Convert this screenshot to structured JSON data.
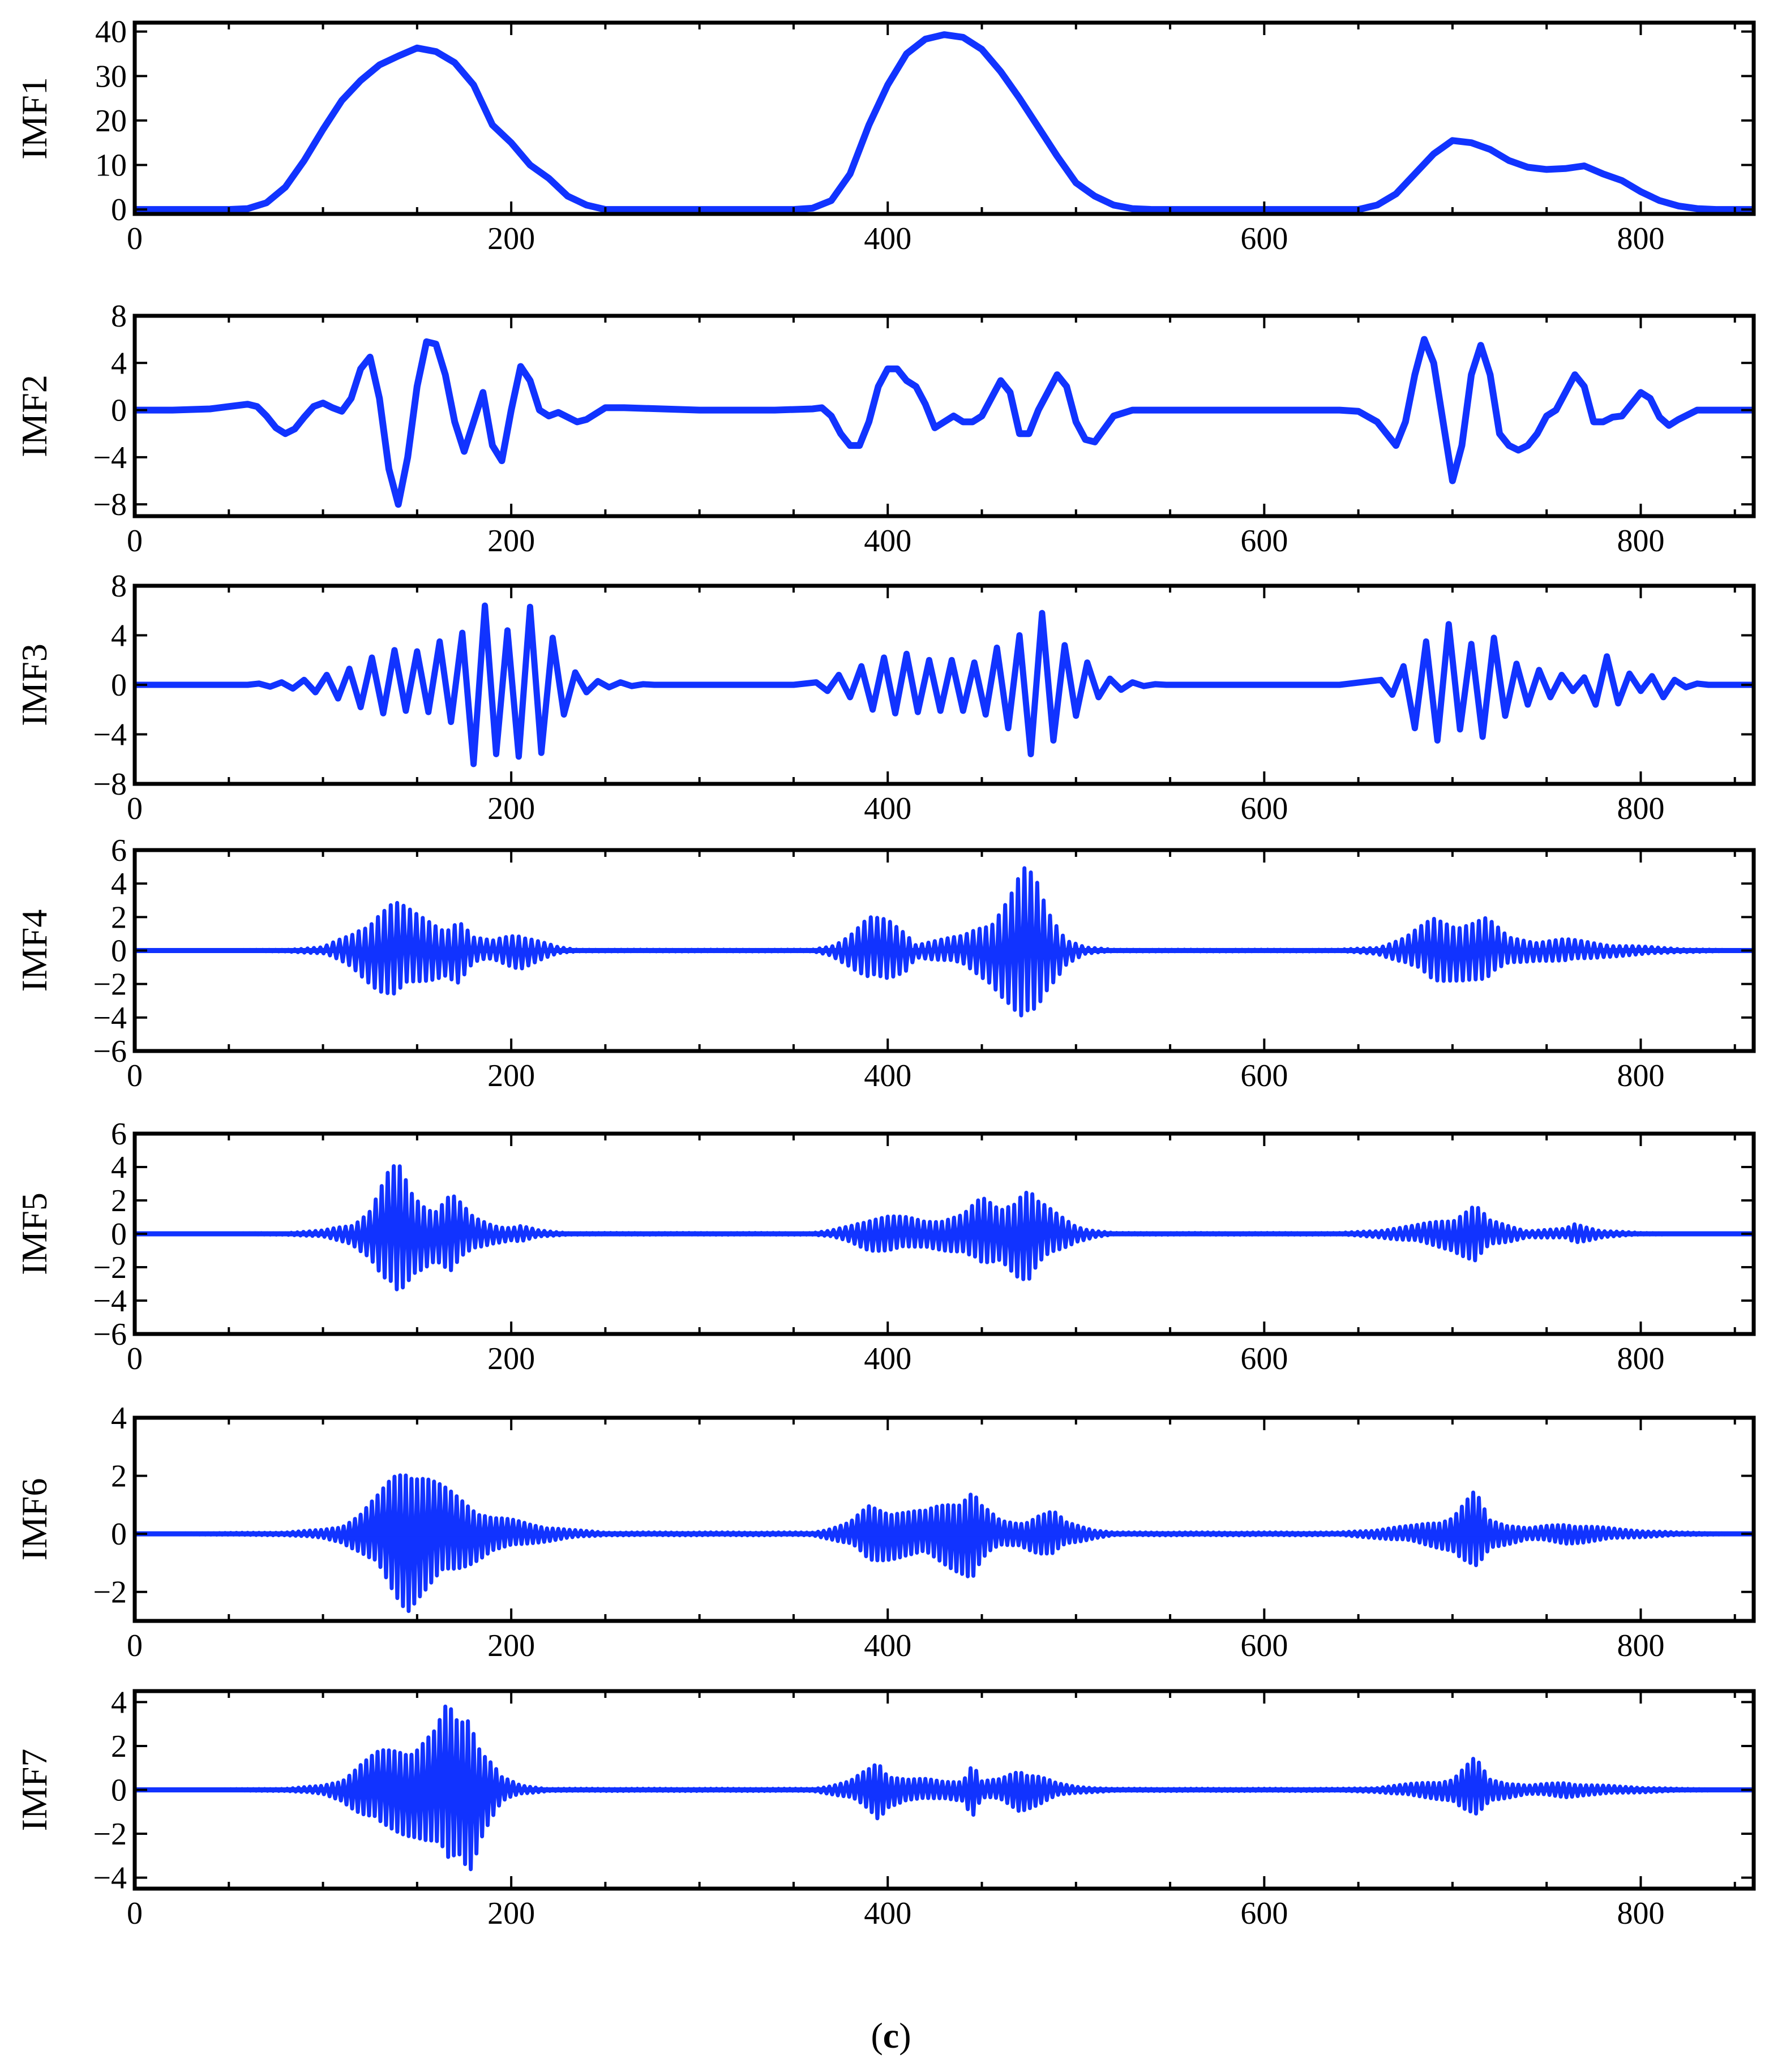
{
  "colors": {
    "series": "#1133ff",
    "axis": "#000000"
  },
  "caption": {
    "open": "(",
    "letter": "c",
    "close": ")"
  },
  "chart_data": [
    {
      "type": "line",
      "ylabel": "IMF1",
      "xlim": [
        0,
        860
      ],
      "ylim": [
        -1,
        42
      ],
      "xticks": [
        0,
        200,
        400,
        600,
        800
      ],
      "yticks": [
        0,
        10,
        20,
        30,
        40
      ],
      "x": [
        0,
        50,
        60,
        70,
        80,
        90,
        100,
        110,
        120,
        130,
        140,
        150,
        160,
        170,
        180,
        190,
        200,
        210,
        220,
        230,
        240,
        250,
        300,
        350,
        360,
        370,
        380,
        390,
        400,
        410,
        420,
        430,
        440,
        450,
        460,
        470,
        480,
        490,
        500,
        510,
        520,
        530,
        540,
        600,
        650,
        660,
        670,
        680,
        690,
        700,
        710,
        720,
        730,
        740,
        750,
        760,
        770,
        780,
        790,
        800,
        810,
        820,
        830,
        840,
        860
      ],
      "y": [
        0,
        0,
        0.2,
        1.5,
        5,
        11,
        18,
        24.5,
        29,
        32.5,
        34.5,
        36.3,
        35.5,
        33,
        28,
        19,
        15,
        10,
        7,
        3,
        1,
        0,
        0,
        0,
        0.3,
        2,
        8,
        19,
        28,
        35,
        38.3,
        39.3,
        38.7,
        36,
        31,
        25,
        18.5,
        12,
        6,
        3,
        1,
        0.2,
        0,
        0,
        0,
        1,
        3.5,
        8,
        12.5,
        15.5,
        15,
        13.5,
        11,
        9.5,
        9,
        9.2,
        9.8,
        8,
        6.5,
        4,
        2,
        0.8,
        0.2,
        0,
        0
      ]
    },
    {
      "type": "line",
      "ylabel": "IMF2",
      "xlim": [
        0,
        860
      ],
      "ylim": [
        -9,
        8
      ],
      "xticks": [
        0,
        200,
        400,
        600,
        800
      ],
      "yticks": [
        -8,
        -4,
        0,
        4,
        8
      ],
      "x": [
        0,
        20,
        40,
        50,
        60,
        65,
        70,
        75,
        80,
        85,
        90,
        95,
        100,
        105,
        110,
        115,
        120,
        125,
        130,
        135,
        140,
        145,
        150,
        155,
        160,
        165,
        170,
        175,
        180,
        185,
        190,
        195,
        200,
        205,
        210,
        215,
        220,
        225,
        230,
        235,
        240,
        250,
        260,
        300,
        340,
        360,
        365,
        370,
        375,
        380,
        385,
        390,
        395,
        400,
        405,
        410,
        415,
        420,
        425,
        430,
        435,
        440,
        445,
        450,
        455,
        460,
        465,
        470,
        475,
        480,
        485,
        490,
        495,
        500,
        505,
        510,
        520,
        530,
        600,
        640,
        650,
        660,
        665,
        670,
        675,
        680,
        685,
        690,
        695,
        700,
        705,
        710,
        715,
        720,
        725,
        730,
        735,
        740,
        745,
        750,
        755,
        760,
        765,
        770,
        775,
        780,
        785,
        790,
        795,
        800,
        805,
        810,
        815,
        820,
        830,
        840,
        860
      ],
      "y": [
        0,
        0,
        0.1,
        0.3,
        0.5,
        0.3,
        -0.5,
        -1.5,
        -2,
        -1.6,
        -0.6,
        0.3,
        0.6,
        0.2,
        -0.1,
        1,
        3.5,
        4.5,
        1,
        -5,
        -8,
        -4,
        2,
        5.8,
        5.6,
        3,
        -1,
        -3.5,
        -1,
        1.5,
        -3,
        -4.3,
        0,
        3.7,
        2.5,
        0,
        -0.5,
        -0.2,
        -0.6,
        -1,
        -0.8,
        0.2,
        0.2,
        0,
        0,
        0.1,
        0.2,
        -0.5,
        -2,
        -3,
        -3,
        -1,
        2,
        3.5,
        3.5,
        2.5,
        2,
        0.5,
        -1.5,
        -1,
        -0.5,
        -1,
        -1,
        -0.5,
        1,
        2.5,
        1.5,
        -2,
        -2,
        0,
        1.5,
        3,
        2,
        -1,
        -2.5,
        -2.7,
        -0.5,
        0,
        0,
        0,
        -0.1,
        -1,
        -2,
        -3,
        -1,
        3,
        6,
        4,
        -1,
        -6,
        -3,
        3,
        5.5,
        3,
        -2,
        -3,
        -3.4,
        -3,
        -2,
        -0.5,
        0,
        1.5,
        3,
        2,
        -1,
        -1,
        -0.6,
        -0.5,
        0.5,
        1.5,
        1,
        -0.6,
        -1.3,
        -0.8,
        0,
        0,
        0
      ]
    },
    {
      "type": "line",
      "ylabel": "IMF3",
      "xlim": [
        0,
        860
      ],
      "ylim": [
        -8,
        8
      ],
      "xticks": [
        0,
        200,
        400,
        600,
        800
      ],
      "yticks": [
        -8,
        -4,
        0,
        4,
        8
      ],
      "x": [
        0,
        60,
        66,
        72,
        78,
        84,
        90,
        96,
        102,
        108,
        114,
        120,
        126,
        132,
        138,
        144,
        150,
        156,
        162,
        168,
        174,
        180,
        186,
        192,
        198,
        204,
        210,
        216,
        222,
        228,
        234,
        240,
        246,
        252,
        258,
        264,
        270,
        276,
        350,
        362,
        368,
        374,
        380,
        386,
        392,
        398,
        404,
        410,
        416,
        422,
        428,
        434,
        440,
        446,
        452,
        458,
        464,
        470,
        476,
        482,
        488,
        494,
        500,
        506,
        512,
        518,
        524,
        530,
        536,
        542,
        548,
        640,
        662,
        668,
        674,
        680,
        686,
        692,
        698,
        704,
        710,
        716,
        722,
        728,
        734,
        740,
        746,
        752,
        758,
        764,
        770,
        776,
        782,
        788,
        794,
        800,
        806,
        812,
        818,
        824,
        830,
        836,
        860
      ],
      "y": [
        0,
        0,
        0.1,
        -0.15,
        0.2,
        -0.3,
        0.4,
        -0.6,
        0.8,
        -1.1,
        1.3,
        -1.8,
        2.2,
        -2.3,
        2.8,
        -2.1,
        2.7,
        -2.2,
        3.5,
        -3,
        4.2,
        -6.4,
        6.4,
        -5.6,
        4.4,
        -5.8,
        6.3,
        -5.5,
        3.8,
        -2.4,
        1,
        -0.6,
        0.3,
        -0.2,
        0.2,
        -0.1,
        0.05,
        0,
        0,
        0.2,
        -0.5,
        0.8,
        -1,
        1.5,
        -2,
        2.2,
        -2.3,
        2.5,
        -2.2,
        2,
        -2.1,
        2,
        -2.1,
        1.8,
        -2.4,
        3,
        -3.5,
        4,
        -5.6,
        5.8,
        -4.5,
        3.2,
        -2.5,
        1.8,
        -1,
        0.5,
        -0.4,
        0.2,
        -0.1,
        0.05,
        0,
        0,
        0.4,
        -0.8,
        1.5,
        -3.5,
        3.5,
        -4.5,
        4.9,
        -3.6,
        3.3,
        -4.2,
        3.8,
        -2.5,
        1.7,
        -1.6,
        1.2,
        -1,
        0.8,
        -0.5,
        0.6,
        -1.6,
        2.3,
        -1.5,
        0.9,
        -0.5,
        0.7,
        -1,
        0.4,
        -0.2,
        0.1,
        0,
        0
      ]
    },
    {
      "type": "line",
      "ylabel": "IMF4",
      "xlim": [
        0,
        860
      ],
      "ylim": [
        -6,
        6
      ],
      "xticks": [
        0,
        200,
        400,
        600,
        800
      ],
      "yticks": [
        -6,
        -4,
        -2,
        0,
        2,
        4,
        6
      ],
      "x": [
        0,
        80,
        100,
        115,
        130,
        138,
        150,
        165,
        172,
        180,
        190,
        200,
        205,
        215,
        225,
        235,
        360,
        370,
        380,
        390,
        400,
        410,
        415,
        425,
        440,
        455,
        465,
        472,
        478,
        485,
        495,
        505,
        520,
        640,
        660,
        675,
        690,
        700,
        710,
        718,
        730,
        745,
        760,
        780,
        800,
        820,
        860
      ],
      "y": [
        0,
        0.05,
        0.2,
        1,
        2.5,
        3,
        2.2,
        1.5,
        2,
        0.8,
        0.6,
        1,
        1.1,
        0.6,
        0.2,
        0.05,
        0.05,
        0.3,
        1,
        2,
        1.9,
        1.2,
        0.4,
        0.6,
        0.9,
        2,
        3.5,
        5,
        4.5,
        2.5,
        0.8,
        0.2,
        0.05,
        0.05,
        0.2,
        0.8,
        2,
        1.8,
        1.8,
        2,
        0.8,
        0.6,
        0.7,
        0.4,
        0.25,
        0.1,
        0
      ]
    },
    {
      "type": "line",
      "ylabel": "IMF5",
      "xlim": [
        0,
        860
      ],
      "ylim": [
        -6,
        6
      ],
      "xticks": [
        0,
        200,
        400,
        600,
        800
      ],
      "yticks": [
        -6,
        -4,
        -2,
        0,
        2,
        4,
        6
      ],
      "x": [
        0,
        80,
        100,
        115,
        125,
        135,
        140,
        148,
        160,
        168,
        180,
        190,
        200,
        205,
        215,
        230,
        360,
        370,
        380,
        390,
        400,
        410,
        420,
        430,
        440,
        450,
        460,
        470,
        475,
        480,
        490,
        500,
        510,
        520,
        640,
        660,
        680,
        700,
        712,
        720,
        740,
        760,
        765,
        780,
        800,
        860
      ],
      "y": [
        0,
        0.05,
        0.2,
        0.6,
        1.5,
        3.8,
        4.3,
        2.5,
        1.6,
        2.5,
        1,
        0.6,
        0.4,
        0.5,
        0.2,
        0.05,
        0.05,
        0.2,
        0.5,
        1,
        1.1,
        1,
        0.8,
        1,
        1.2,
        2.2,
        1.6,
        2.7,
        2.9,
        2,
        1.2,
        0.5,
        0.2,
        0.05,
        0.05,
        0.2,
        0.5,
        1,
        1.8,
        0.8,
        0.2,
        0.3,
        0.6,
        0.2,
        0.05,
        0
      ]
    },
    {
      "type": "line",
      "ylabel": "IMF6",
      "xlim": [
        0,
        860
      ],
      "ylim": [
        -3,
        4
      ],
      "xticks": [
        0,
        200,
        400,
        600,
        800
      ],
      "yticks": [
        -2,
        0,
        2,
        4
      ],
      "x": [
        0,
        80,
        100,
        110,
        120,
        130,
        138,
        145,
        150,
        160,
        170,
        180,
        190,
        200,
        210,
        230,
        250,
        360,
        370,
        380,
        390,
        400,
        410,
        420,
        430,
        440,
        445,
        450,
        460,
        470,
        480,
        488,
        495,
        510,
        520,
        640,
        660,
        680,
        700,
        712,
        720,
        740,
        760,
        770,
        790,
        820,
        860
      ],
      "y": [
        0,
        0.05,
        0.15,
        0.3,
        0.7,
        1.4,
        2.2,
        2.7,
        2.3,
        1.8,
        1.4,
        1,
        0.6,
        0.5,
        0.35,
        0.15,
        0.05,
        0.05,
        0.2,
        0.4,
        1,
        0.9,
        0.8,
        0.8,
        1.1,
        1.4,
        1.6,
        1,
        0.45,
        0.4,
        0.7,
        0.8,
        0.4,
        0.15,
        0.05,
        0.05,
        0.15,
        0.3,
        0.6,
        1.5,
        0.5,
        0.2,
        0.35,
        0.3,
        0.15,
        0.05,
        0
      ]
    },
    {
      "type": "line",
      "ylabel": "IMF7",
      "xlim": [
        0,
        860
      ],
      "ylim": [
        -4.5,
        4.5
      ],
      "xticks": [
        0,
        200,
        400,
        600,
        800
      ],
      "yticks": [
        -4,
        -2,
        0,
        2,
        4
      ],
      "x": [
        0,
        80,
        100,
        110,
        120,
        130,
        140,
        150,
        160,
        166,
        172,
        178,
        185,
        195,
        205,
        220,
        360,
        370,
        380,
        390,
        395,
        400,
        410,
        420,
        430,
        440,
        445,
        450,
        460,
        470,
        480,
        490,
        500,
        520,
        640,
        660,
        680,
        700,
        712,
        720,
        740,
        760,
        770,
        790,
        820,
        860
      ],
      "y": [
        0,
        0.05,
        0.2,
        0.5,
        1.2,
        1.8,
        2,
        2.2,
        2.8,
        4,
        3.2,
        3.8,
        2,
        0.6,
        0.2,
        0.05,
        0.05,
        0.2,
        0.4,
        1,
        1.4,
        0.8,
        0.5,
        0.5,
        0.4,
        0.5,
        1.3,
        0.4,
        0.5,
        1,
        0.7,
        0.3,
        0.15,
        0.05,
        0.05,
        0.1,
        0.3,
        0.5,
        1.5,
        0.5,
        0.2,
        0.35,
        0.25,
        0.15,
        0.05,
        0
      ]
    }
  ]
}
